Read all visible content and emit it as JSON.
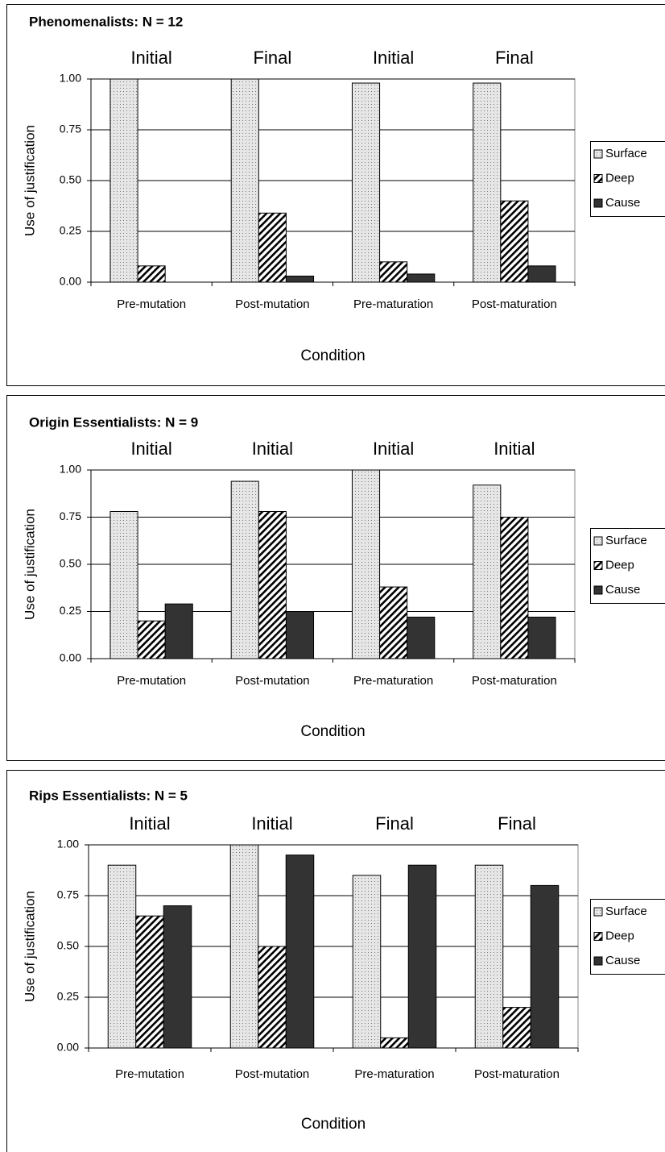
{
  "chart_data": [
    {
      "type": "bar",
      "title": "Phenomenalists: N = 12",
      "group_labels": [
        "Initial",
        "Final",
        "Initial",
        "Final"
      ],
      "categories": [
        "Pre-mutation",
        "Post-mutation",
        "Pre-maturation",
        "Post-maturation"
      ],
      "x_label": "Condition",
      "y_label": "Use of justification",
      "series": [
        {
          "name": "Surface",
          "color": "#e6e6e6",
          "pattern": "dots",
          "values": [
            1.0,
            1.0,
            0.98,
            0.98
          ]
        },
        {
          "name": "Deep",
          "color": "#ffffff",
          "pattern": "hatch",
          "values": [
            0.08,
            0.34,
            0.1,
            0.4
          ]
        },
        {
          "name": "Cause",
          "color": "#333333",
          "pattern": "solid",
          "values": [
            0,
            0.03,
            0.04,
            0.08
          ]
        }
      ],
      "ylim": [
        0,
        1
      ],
      "yticks": [
        {
          "value": 0,
          "label": "0.00"
        },
        {
          "value": 0.25,
          "label": "0.25"
        },
        {
          "value": 0.5,
          "label": "0.50"
        },
        {
          "value": 0.75,
          "label": "0.75"
        },
        {
          "value": 1,
          "label": "1.00"
        }
      ],
      "grid": true,
      "legend": "right"
    },
    {
      "type": "bar",
      "title": "Origin Essentialists: N = 9",
      "group_labels": [
        "Initial",
        "Initial",
        "Initial",
        "Initial"
      ],
      "categories": [
        "Pre-mutation",
        "Post-mutation",
        "Pre-maturation",
        "Post-maturation"
      ],
      "x_label": "Condition",
      "y_label": "Use of justification",
      "series": [
        {
          "name": "Surface",
          "color": "#e6e6e6",
          "pattern": "dots",
          "values": [
            0.78,
            0.94,
            1.0,
            0.92
          ]
        },
        {
          "name": "Deep",
          "color": "#ffffff",
          "pattern": "hatch",
          "values": [
            0.2,
            0.78,
            0.38,
            0.75
          ]
        },
        {
          "name": "Cause",
          "color": "#333333",
          "pattern": "solid",
          "values": [
            0.29,
            0.25,
            0.22,
            0.22
          ]
        }
      ],
      "ylim": [
        0,
        1
      ],
      "yticks": [
        {
          "value": 0,
          "label": "0.00"
        },
        {
          "value": 0.25,
          "label": "0.25"
        },
        {
          "value": 0.5,
          "label": "0.50"
        },
        {
          "value": 0.75,
          "label": "0.75"
        },
        {
          "value": 1,
          "label": "1.00"
        }
      ],
      "grid": true,
      "legend": "right"
    },
    {
      "type": "bar",
      "title": "Rips Essentialists: N = 5",
      "group_labels": [
        "Initial",
        "Initial",
        "Final",
        "Final"
      ],
      "categories": [
        "Pre-mutation",
        "Post-mutation",
        "Pre-maturation",
        "Post-maturation"
      ],
      "x_label": "Condition",
      "y_label": "Use of justification",
      "series": [
        {
          "name": "Surface",
          "color": "#e6e6e6",
          "pattern": "dots",
          "values": [
            0.9,
            1.0,
            0.85,
            0.9
          ]
        },
        {
          "name": "Deep",
          "color": "#ffffff",
          "pattern": "hatch",
          "values": [
            0.65,
            0.5,
            0.05,
            0.2
          ]
        },
        {
          "name": "Cause",
          "color": "#333333",
          "pattern": "solid",
          "values": [
            0.7,
            0.95,
            0.9,
            0.8
          ]
        }
      ],
      "ylim": [
        0,
        1
      ],
      "yticks": [
        {
          "value": 0,
          "label": "0.00"
        },
        {
          "value": 0.25,
          "label": "0.25"
        },
        {
          "value": 0.5,
          "label": "0.50"
        },
        {
          "value": 0.75,
          "label": "0.75"
        },
        {
          "value": 1,
          "label": "1.00"
        }
      ],
      "grid": true,
      "legend": "right"
    }
  ]
}
